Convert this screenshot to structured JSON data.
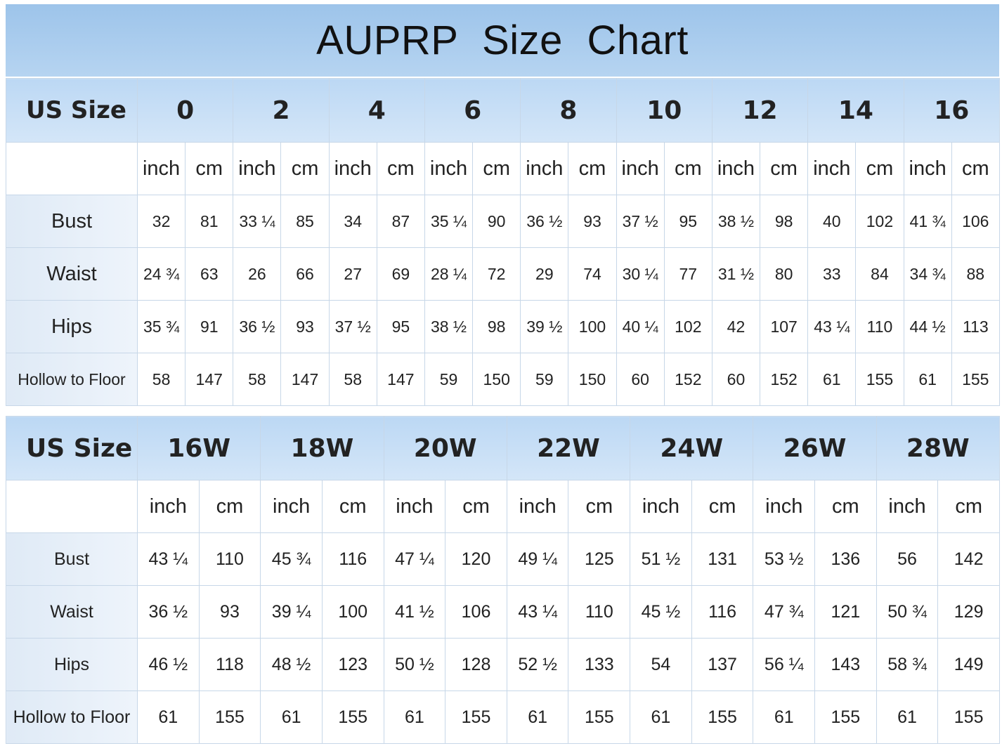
{
  "chart_data": {
    "type": "table",
    "title": "AUPRP  Size Chart",
    "tables": [
      {
        "header_label": "US Size",
        "sizes": [
          "0",
          "2",
          "4",
          "6",
          "8",
          "10",
          "12",
          "14",
          "16"
        ],
        "units": [
          "inch",
          "cm"
        ],
        "rows": [
          {
            "label": "Bust",
            "values": [
              "32",
              "81",
              "33 ¼",
              "85",
              "34",
              "87",
              "35 ¼",
              "90",
              "36 ½",
              "93",
              "37 ½",
              "95",
              "38 ½",
              "98",
              "40",
              "102",
              "41 ¾",
              "106"
            ]
          },
          {
            "label": "Waist",
            "values": [
              "24 ¾",
              "63",
              "26",
              "66",
              "27",
              "69",
              "28 ¼",
              "72",
              "29",
              "74",
              "30 ¼",
              "77",
              "31 ½",
              "80",
              "33",
              "84",
              "34 ¾",
              "88"
            ]
          },
          {
            "label": "Hips",
            "values": [
              "35 ¾",
              "91",
              "36 ½",
              "93",
              "37 ½",
              "95",
              "38 ½",
              "98",
              "39 ½",
              "100",
              "40 ¼",
              "102",
              "42",
              "107",
              "43 ¼",
              "110",
              "44 ½",
              "113"
            ]
          },
          {
            "label": "Hollow to Floor",
            "values": [
              "58",
              "147",
              "58",
              "147",
              "58",
              "147",
              "59",
              "150",
              "59",
              "150",
              "60",
              "152",
              "60",
              "152",
              "61",
              "155",
              "61",
              "155"
            ]
          }
        ]
      },
      {
        "header_label": "US Size",
        "sizes": [
          "16W",
          "18W",
          "20W",
          "22W",
          "24W",
          "26W",
          "28W"
        ],
        "units": [
          "inch",
          "cm"
        ],
        "rows": [
          {
            "label": "Bust",
            "values": [
              "43 ¼",
              "110",
              "45 ¾",
              "116",
              "47 ¼",
              "120",
              "49 ¼",
              "125",
              "51 ½",
              "131",
              "53 ½",
              "136",
              "56",
              "142"
            ]
          },
          {
            "label": "Waist",
            "values": [
              "36 ½",
              "93",
              "39 ¼",
              "100",
              "41 ½",
              "106",
              "43 ¼",
              "110",
              "45 ½",
              "116",
              "47 ¾",
              "121",
              "50 ¾",
              "129"
            ]
          },
          {
            "label": "Hips",
            "values": [
              "46 ½",
              "118",
              "48 ½",
              "123",
              "50 ½",
              "128",
              "52 ½",
              "133",
              "54",
              "137",
              "56 ¼",
              "143",
              "58 ¾",
              "149"
            ]
          },
          {
            "label": "Hollow to Floor",
            "values": [
              "61",
              "155",
              "61",
              "155",
              "61",
              "155",
              "61",
              "155",
              "61",
              "155",
              "61",
              "155",
              "61",
              "155"
            ]
          }
        ]
      }
    ]
  }
}
